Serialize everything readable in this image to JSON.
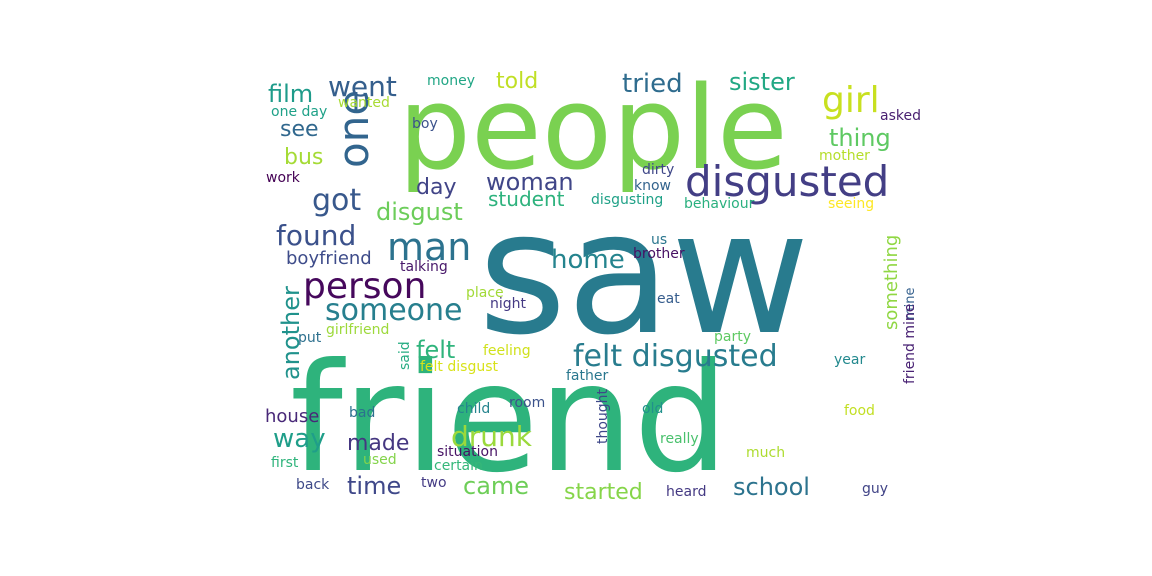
{
  "words": [
    {
      "text": "saw",
      "color": "#287b8e"
    },
    {
      "text": "friend",
      "color": "#2eb37c"
    },
    {
      "text": "people",
      "color": "#7ad151"
    },
    {
      "text": "disgusted",
      "color": "#433e85"
    },
    {
      "text": "one",
      "color": "#32658e"
    },
    {
      "text": "girl",
      "color": "#c8e020"
    },
    {
      "text": "man",
      "color": "#2c728e"
    },
    {
      "text": "person",
      "color": "#46085c"
    },
    {
      "text": "felt disgusted",
      "color": "#287c8e"
    },
    {
      "text": "someone",
      "color": "#277f8e"
    },
    {
      "text": "found",
      "color": "#3b518b"
    },
    {
      "text": "got",
      "color": "#38588c"
    },
    {
      "text": "went",
      "color": "#355f8d"
    },
    {
      "text": "home",
      "color": "#25848e"
    },
    {
      "text": "drunk",
      "color": "#9bd93c"
    },
    {
      "text": "told",
      "color": "#c0df25"
    },
    {
      "text": "tried",
      "color": "#2f6c8e"
    },
    {
      "text": "woman",
      "color": "#404688"
    },
    {
      "text": "thing",
      "color": "#5ec962"
    },
    {
      "text": "sister",
      "color": "#22a884"
    },
    {
      "text": "film",
      "color": "#1e9b8a"
    },
    {
      "text": "see",
      "color": "#31688e"
    },
    {
      "text": "bus",
      "color": "#a5db36"
    },
    {
      "text": "day",
      "color": "#414487"
    },
    {
      "text": "disgust",
      "color": "#6ccd5a"
    },
    {
      "text": "student",
      "color": "#2db27d"
    },
    {
      "text": "another",
      "color": "#20928c"
    },
    {
      "text": "felt",
      "color": "#2fb47c"
    },
    {
      "text": "boyfriend",
      "color": "#3e4c8a"
    },
    {
      "text": "way",
      "color": "#1f9e89"
    },
    {
      "text": "made",
      "color": "#453781"
    },
    {
      "text": "time",
      "color": "#3f4889"
    },
    {
      "text": "came",
      "color": "#6ece58"
    },
    {
      "text": "started",
      "color": "#86d549"
    },
    {
      "text": "school",
      "color": "#2c738e"
    },
    {
      "text": "house",
      "color": "#482878"
    },
    {
      "text": "something",
      "color": "#90d743"
    },
    {
      "text": "money",
      "color": "#21a685"
    },
    {
      "text": "wanted",
      "color": "#a8db34"
    },
    {
      "text": "one day",
      "color": "#1fa188"
    },
    {
      "text": "boy",
      "color": "#3b528b"
    },
    {
      "text": "asked",
      "color": "#481f70"
    },
    {
      "text": "mother",
      "color": "#b5de2b"
    },
    {
      "text": "dirty",
      "color": "#3f4788"
    },
    {
      "text": "know",
      "color": "#33638d"
    },
    {
      "text": "work",
      "color": "#440154"
    },
    {
      "text": "disgusting",
      "color": "#1fa187"
    },
    {
      "text": "behaviour",
      "color": "#2ab07f"
    },
    {
      "text": "seeing",
      "color": "#fde725"
    },
    {
      "text": "us",
      "color": "#2a768e"
    },
    {
      "text": "brother",
      "color": "#471063"
    },
    {
      "text": "talking",
      "color": "#48186a"
    },
    {
      "text": "place",
      "color": "#a2da37"
    },
    {
      "text": "night",
      "color": "#443983"
    },
    {
      "text": "eat",
      "color": "#365d8d"
    },
    {
      "text": "girlfriend",
      "color": "#9dd93b"
    },
    {
      "text": "put",
      "color": "#2d708e"
    },
    {
      "text": "mine",
      "color": "#34608d"
    },
    {
      "text": "party",
      "color": "#5ec962"
    },
    {
      "text": "said",
      "color": "#25ac82"
    },
    {
      "text": "feeling",
      "color": "#d0e11c"
    },
    {
      "text": "felt disgust",
      "color": "#d8e219"
    },
    {
      "text": "year",
      "color": "#23898e"
    },
    {
      "text": "father",
      "color": "#2a778e"
    },
    {
      "text": "friend mine",
      "color": "#482173"
    },
    {
      "text": "room",
      "color": "#3b528b"
    },
    {
      "text": "bad",
      "color": "#2c718e"
    },
    {
      "text": "child",
      "color": "#25848e"
    },
    {
      "text": "thought",
      "color": "#3f4889"
    },
    {
      "text": "old",
      "color": "#21918c"
    },
    {
      "text": "food",
      "color": "#c2df23"
    },
    {
      "text": "situation",
      "color": "#471365"
    },
    {
      "text": "first",
      "color": "#2fb47c"
    },
    {
      "text": "used",
      "color": "#84d44b"
    },
    {
      "text": "certain",
      "color": "#35b779"
    },
    {
      "text": "really",
      "color": "#4ac16d"
    },
    {
      "text": "much",
      "color": "#addc30"
    },
    {
      "text": "back",
      "color": "#3e4a89"
    },
    {
      "text": "two",
      "color": "#443b84"
    },
    {
      "text": "heard",
      "color": "#443983"
    },
    {
      "text": "guy",
      "color": "#414487"
    }
  ]
}
